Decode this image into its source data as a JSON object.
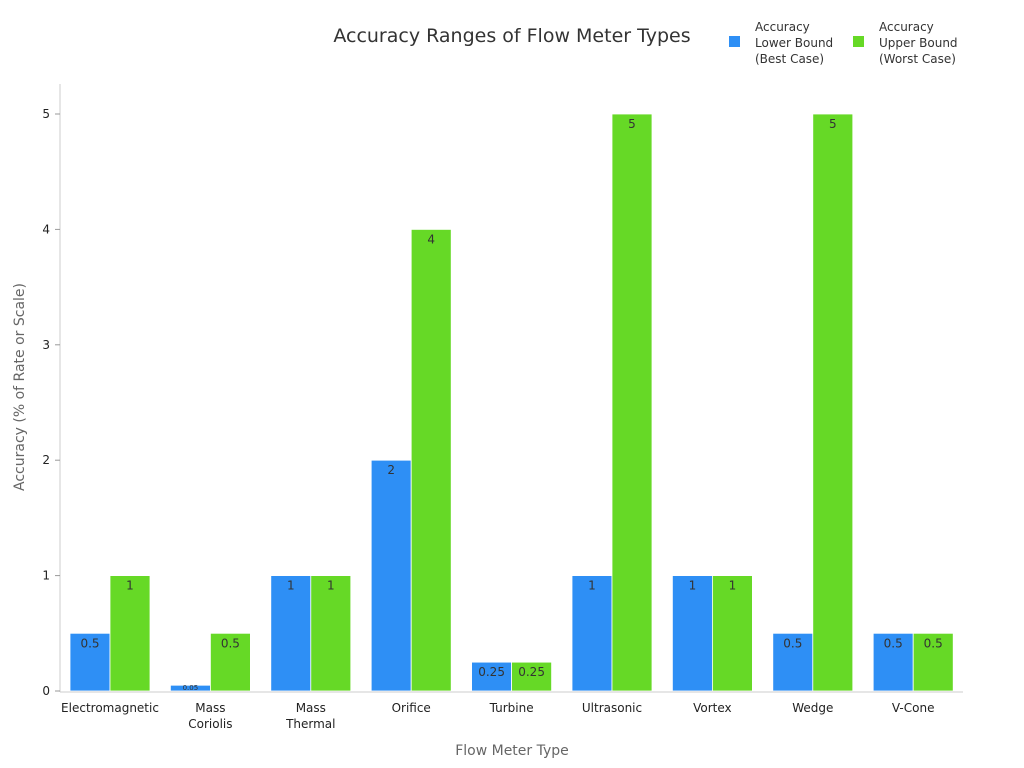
{
  "chart_data": {
    "type": "bar",
    "title": "Accuracy Ranges of Flow Meter Types",
    "xlabel": "Flow Meter Type",
    "ylabel": "Accuracy (% of Rate or Scale)",
    "ylim": [
      0,
      5.25
    ],
    "yticks": [
      0,
      1,
      2,
      3,
      4,
      5
    ],
    "grid": false,
    "legend": "top-right",
    "categories": [
      [
        "Electromagnetic"
      ],
      [
        "Mass",
        "Coriolis"
      ],
      [
        "Mass",
        "Thermal"
      ],
      [
        "Orifice"
      ],
      [
        "Turbine"
      ],
      [
        "Ultrasonic"
      ],
      [
        "Vortex"
      ],
      [
        "Wedge"
      ],
      [
        "V-Cone"
      ]
    ],
    "series": [
      {
        "name": [
          "Accuracy",
          "Lower Bound",
          "(Best Case)"
        ],
        "color": "#2e8ff5",
        "values": [
          0.5,
          0.05,
          1,
          2,
          0.25,
          1,
          1,
          0.5,
          0.5
        ]
      },
      {
        "name": [
          "Accuracy",
          "Upper Bound",
          "(Worst Case)"
        ],
        "color": "#66d926",
        "values": [
          1,
          0.5,
          1,
          4,
          0.25,
          5,
          1,
          5,
          0.5
        ]
      }
    ]
  }
}
